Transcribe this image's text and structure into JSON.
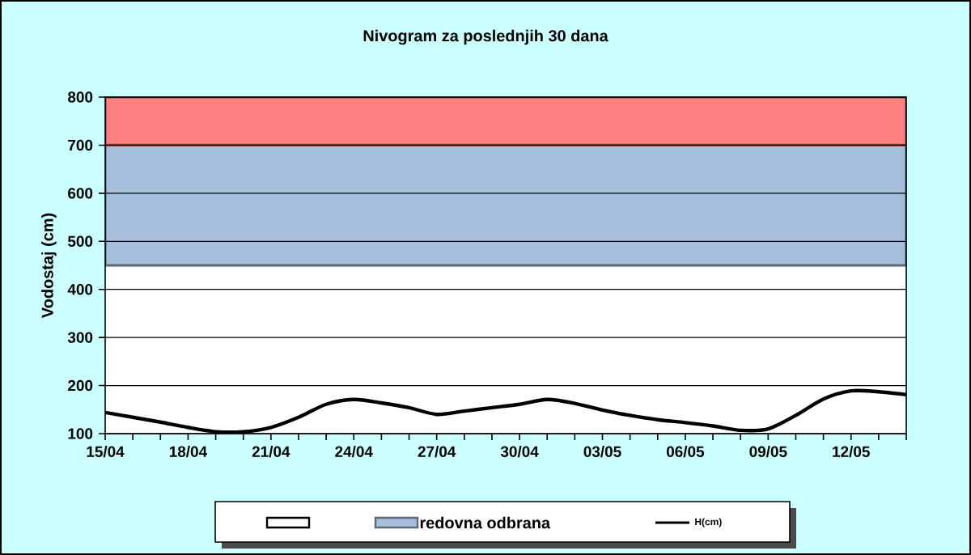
{
  "chart_data": {
    "type": "line",
    "title": "Nivogram za poslednjih 30 dana",
    "ylabel": "Vodostaj (cm)",
    "categories": [
      "15/04",
      null,
      null,
      "18/04",
      null,
      null,
      "21/04",
      null,
      null,
      "24/04",
      null,
      null,
      "27/04",
      null,
      null,
      "30/04",
      null,
      null,
      "03/05",
      null,
      null,
      "06/05",
      null,
      null,
      "09/05",
      null,
      null,
      "12/05",
      null,
      null
    ],
    "series": [
      {
        "name": "H(cm)",
        "color": "#000000",
        "values": [
          144,
          134,
          124,
          113,
          104,
          104,
          113,
          134,
          161,
          171,
          164,
          154,
          140,
          147,
          154,
          161,
          171,
          163,
          149,
          138,
          129,
          123,
          116,
          107,
          110,
          138,
          172,
          189,
          187,
          181
        ]
      }
    ],
    "bands": [
      {
        "axis": "y",
        "from": 100,
        "to": 450,
        "label": null,
        "color": "#ffffff"
      },
      {
        "axis": "y",
        "from": 450,
        "to": 700,
        "label": "redovna odbrana",
        "color": "#a6bfdc"
      },
      {
        "axis": "y",
        "from": 700,
        "to": 800,
        "color": "#ff8080"
      }
    ],
    "ylim": [
      100,
      800
    ],
    "yticks": [
      100,
      200,
      300,
      400,
      500,
      600,
      700,
      800
    ],
    "grid": "y",
    "legend": "bottom",
    "marker": "none",
    "line_style": "solid"
  }
}
